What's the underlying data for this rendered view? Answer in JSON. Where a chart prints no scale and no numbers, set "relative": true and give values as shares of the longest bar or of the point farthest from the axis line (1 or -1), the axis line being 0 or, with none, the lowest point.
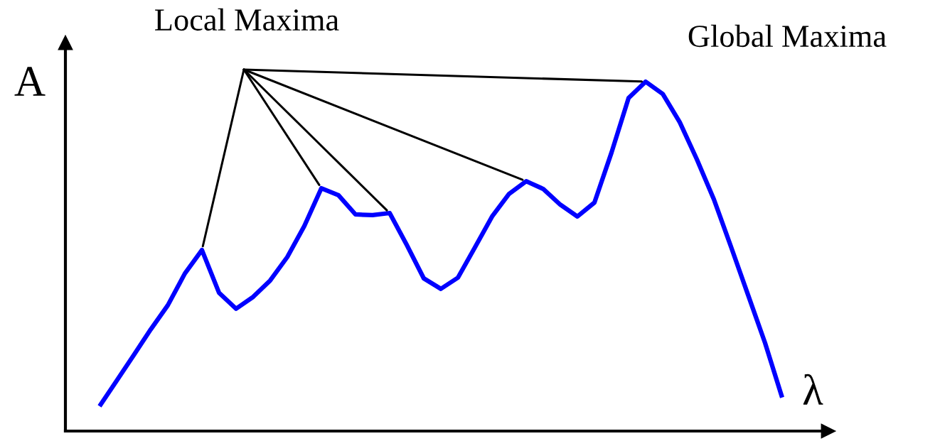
{
  "chart_data": {
    "type": "line",
    "relative": true,
    "xlabel": "λ",
    "ylabel": "A",
    "annotations": [
      "Local Maxima",
      "Global Maxima"
    ],
    "line_style": "solid",
    "categories": [
      null,
      null,
      null,
      null,
      null,
      null,
      null,
      null,
      null,
      null,
      null,
      null,
      null,
      null,
      null,
      null,
      null,
      null,
      null,
      null,
      null,
      null,
      null,
      null,
      null,
      null,
      null,
      null,
      null,
      null,
      null,
      null,
      null,
      null,
      null,
      null,
      null,
      null,
      null,
      null,
      null
    ],
    "series": [
      {
        "color": "#0000ff",
        "values": [
          0.071,
          0.144,
          0.217,
          0.291,
          0.36,
          0.451,
          0.518,
          0.396,
          0.35,
          0.384,
          0.431,
          0.498,
          0.587,
          0.695,
          0.675,
          0.62,
          0.618,
          0.624,
          0.533,
          0.437,
          0.407,
          0.439,
          0.526,
          0.614,
          0.679,
          0.715,
          0.693,
          0.648,
          0.614,
          0.654,
          0.797,
          0.953,
          1.0,
          0.965,
          0.884,
          0.778,
          0.663,
          0.528,
          0.39,
          0.252,
          0.096
        ]
      }
    ]
  }
}
